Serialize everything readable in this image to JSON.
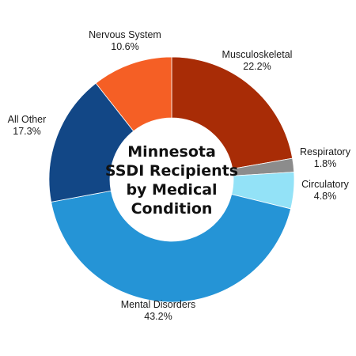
{
  "chart_data": {
    "type": "pie",
    "variant": "donut",
    "title_lines": [
      "Minnesota",
      "SSDI Recipients",
      "by Medical",
      "Condition"
    ],
    "slices": [
      {
        "name": "Musculoskeletal",
        "value": 22.2,
        "value_label": "22.2%",
        "color": "#A82C06"
      },
      {
        "name": "Respiratory",
        "value": 1.8,
        "value_label": "1.8%",
        "color": "#8C8C8C"
      },
      {
        "name": "Circulatory",
        "value": 4.8,
        "value_label": "4.8%",
        "color": "#93E2F7"
      },
      {
        "name": "Mental Disorders",
        "value": 43.2,
        "value_label": "43.2%",
        "color": "#2594D6"
      },
      {
        "name": "All Other",
        "value": 17.3,
        "value_label": "17.3%",
        "color": "#124786"
      },
      {
        "name": "Nervous System",
        "value": 10.6,
        "value_label": "10.6%",
        "color": "#F55F25"
      }
    ],
    "start": "12 o'clock",
    "direction": "clockwise",
    "legend": "none"
  }
}
